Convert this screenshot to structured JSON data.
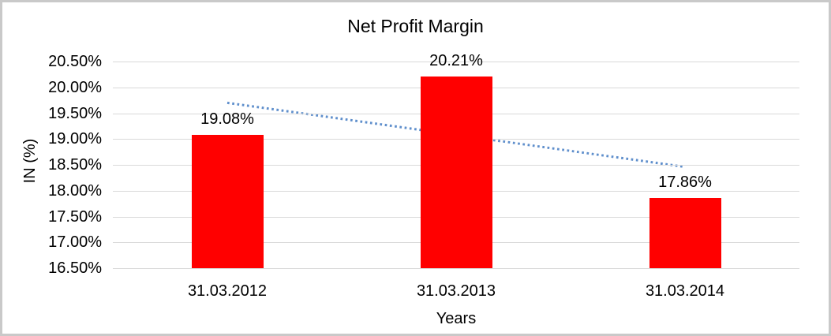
{
  "frame": {
    "border_color": "#c9c9c9",
    "background": "#ffffff"
  },
  "chart_data": {
    "type": "bar",
    "title": "Net Profit Margin",
    "categories": [
      "31.03.2012",
      "31.03.2013",
      "31.03.2014"
    ],
    "values": [
      19.08,
      20.21,
      17.86
    ],
    "data_labels": [
      "19.08%",
      "20.21%",
      "17.86%"
    ],
    "xlabel": "Years",
    "ylabel": "IN (%)",
    "ylim": [
      16.5,
      20.5
    ],
    "ytick_step": 0.5,
    "ytick_labels_top_to_bottom": [
      "20.50%",
      "20.00%",
      "19.50%",
      "19.00%",
      "18.50%",
      "18.00%",
      "17.50%",
      "17.00%",
      "16.50%"
    ],
    "grid": true,
    "legend": "none",
    "bar_color": "#ff0000",
    "gridline_color": "#d9d9d9",
    "text_color": "#000000",
    "trendline": {
      "type": "linear",
      "style": "dotted",
      "color": "#5f8fcc",
      "start_value": 19.7,
      "end_value": 18.46
    }
  }
}
